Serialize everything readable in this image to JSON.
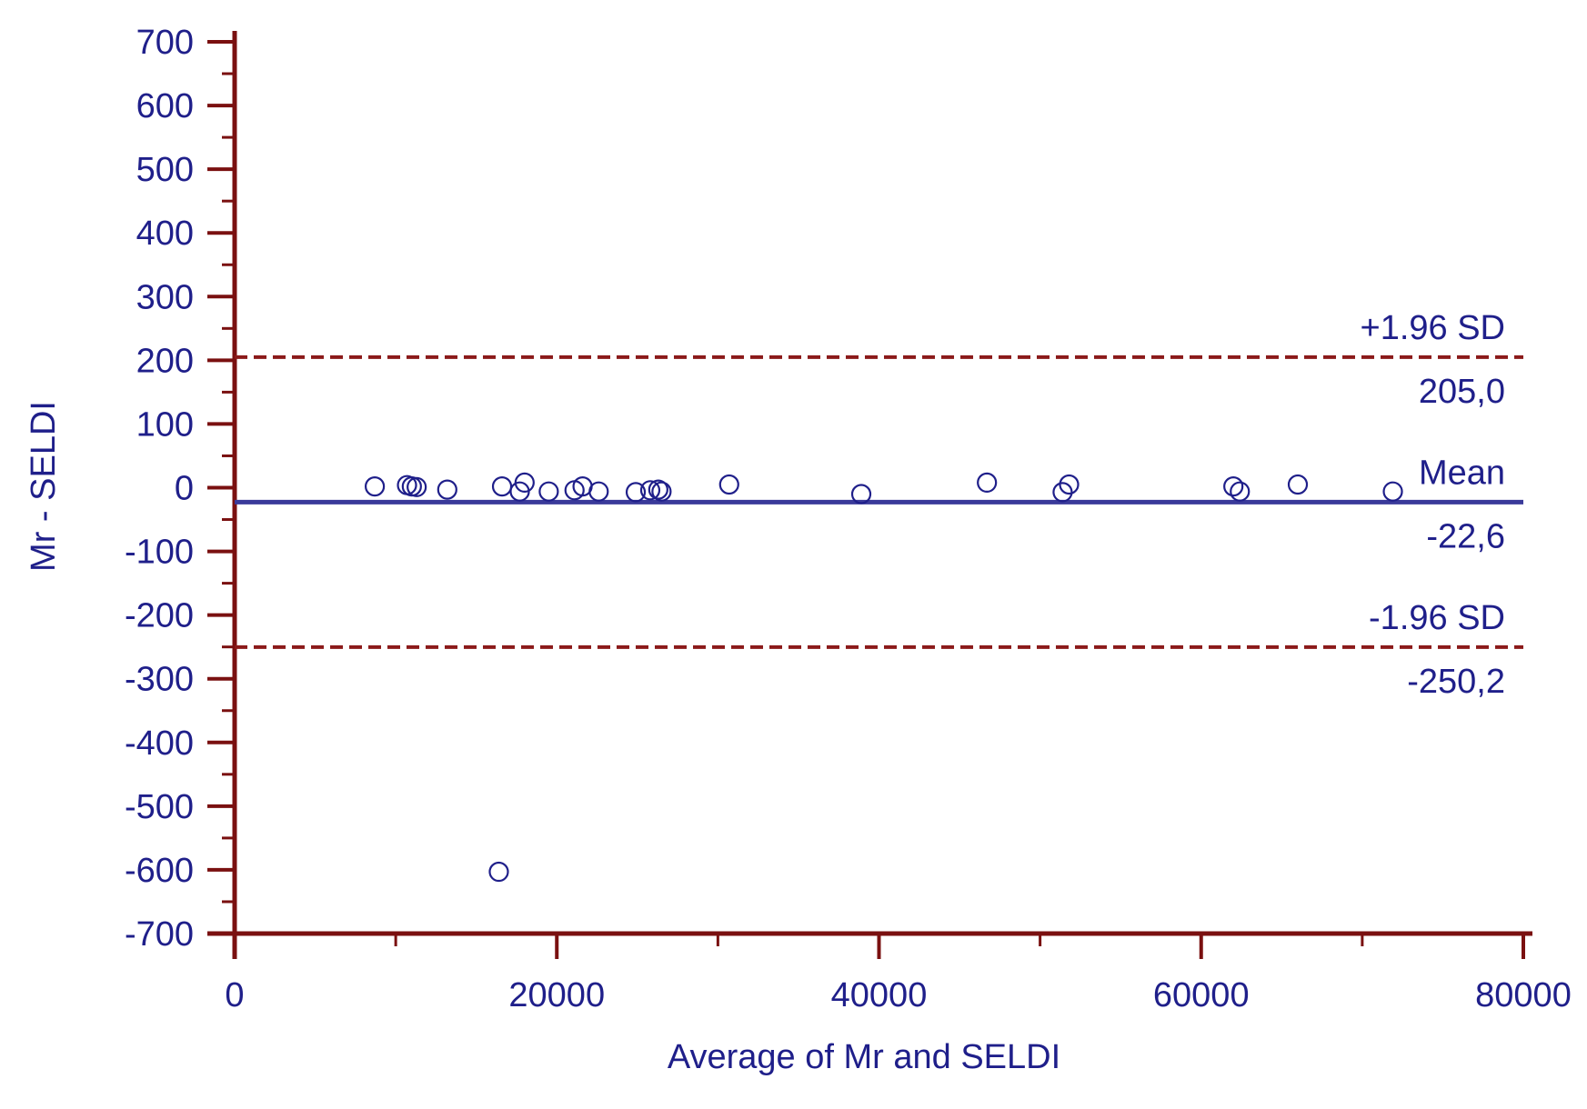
{
  "chart_data": {
    "type": "scatter",
    "title": "",
    "xlabel": "Average of Mr and SELDI",
    "ylabel": "Mr - SELDI",
    "xlim": [
      0,
      80000
    ],
    "ylim": [
      -700,
      700
    ],
    "x_ticks": [
      0,
      20000,
      40000,
      60000,
      80000
    ],
    "x_tick_labels": [
      "0",
      "20000",
      "40000",
      "60000",
      "80000"
    ],
    "y_ticks": [
      700,
      600,
      500,
      400,
      300,
      200,
      100,
      0,
      -100,
      -200,
      -300,
      -400,
      -500,
      -600,
      -700
    ],
    "y_tick_labels": [
      "700",
      "600",
      "500",
      "400",
      "300",
      "200",
      "100",
      "0",
      "-100",
      "-200",
      "-300",
      "-400",
      "-500",
      "-600",
      "-700"
    ],
    "grid": false,
    "points": [
      {
        "x": 8700,
        "y": 2
      },
      {
        "x": 10700,
        "y": 4
      },
      {
        "x": 11000,
        "y": 2
      },
      {
        "x": 11300,
        "y": 1
      },
      {
        "x": 13200,
        "y": -3
      },
      {
        "x": 16400,
        "y": -603
      },
      {
        "x": 16600,
        "y": 2
      },
      {
        "x": 17700,
        "y": -6
      },
      {
        "x": 18000,
        "y": 8
      },
      {
        "x": 19500,
        "y": -6
      },
      {
        "x": 21100,
        "y": -4
      },
      {
        "x": 21600,
        "y": 2
      },
      {
        "x": 22600,
        "y": -6
      },
      {
        "x": 24900,
        "y": -7
      },
      {
        "x": 25800,
        "y": -4
      },
      {
        "x": 26300,
        "y": -3
      },
      {
        "x": 26500,
        "y": -6
      },
      {
        "x": 30700,
        "y": 5
      },
      {
        "x": 38900,
        "y": -10
      },
      {
        "x": 46700,
        "y": 8
      },
      {
        "x": 51400,
        "y": -7
      },
      {
        "x": 51800,
        "y": 5
      },
      {
        "x": 62000,
        "y": 2
      },
      {
        "x": 62400,
        "y": -6
      },
      {
        "x": 66000,
        "y": 5
      },
      {
        "x": 71900,
        "y": -6
      }
    ],
    "reference_lines": [
      {
        "name": "+1.96 SD",
        "value_label": "205,0",
        "y": 205.0,
        "style": "dashed",
        "color": "#8b1a1a"
      },
      {
        "name": "Mean",
        "value_label": "-22,6",
        "y": -22.6,
        "style": "solid",
        "color": "#3a3a9a"
      },
      {
        "name": "-1.96 SD",
        "value_label": "-250,2",
        "y": -250.2,
        "style": "dashed",
        "color": "#8b1a1a"
      }
    ],
    "colors": {
      "axis": "#7a1010",
      "text": "#1f1f8a",
      "marker": "#1f1f8a"
    }
  }
}
